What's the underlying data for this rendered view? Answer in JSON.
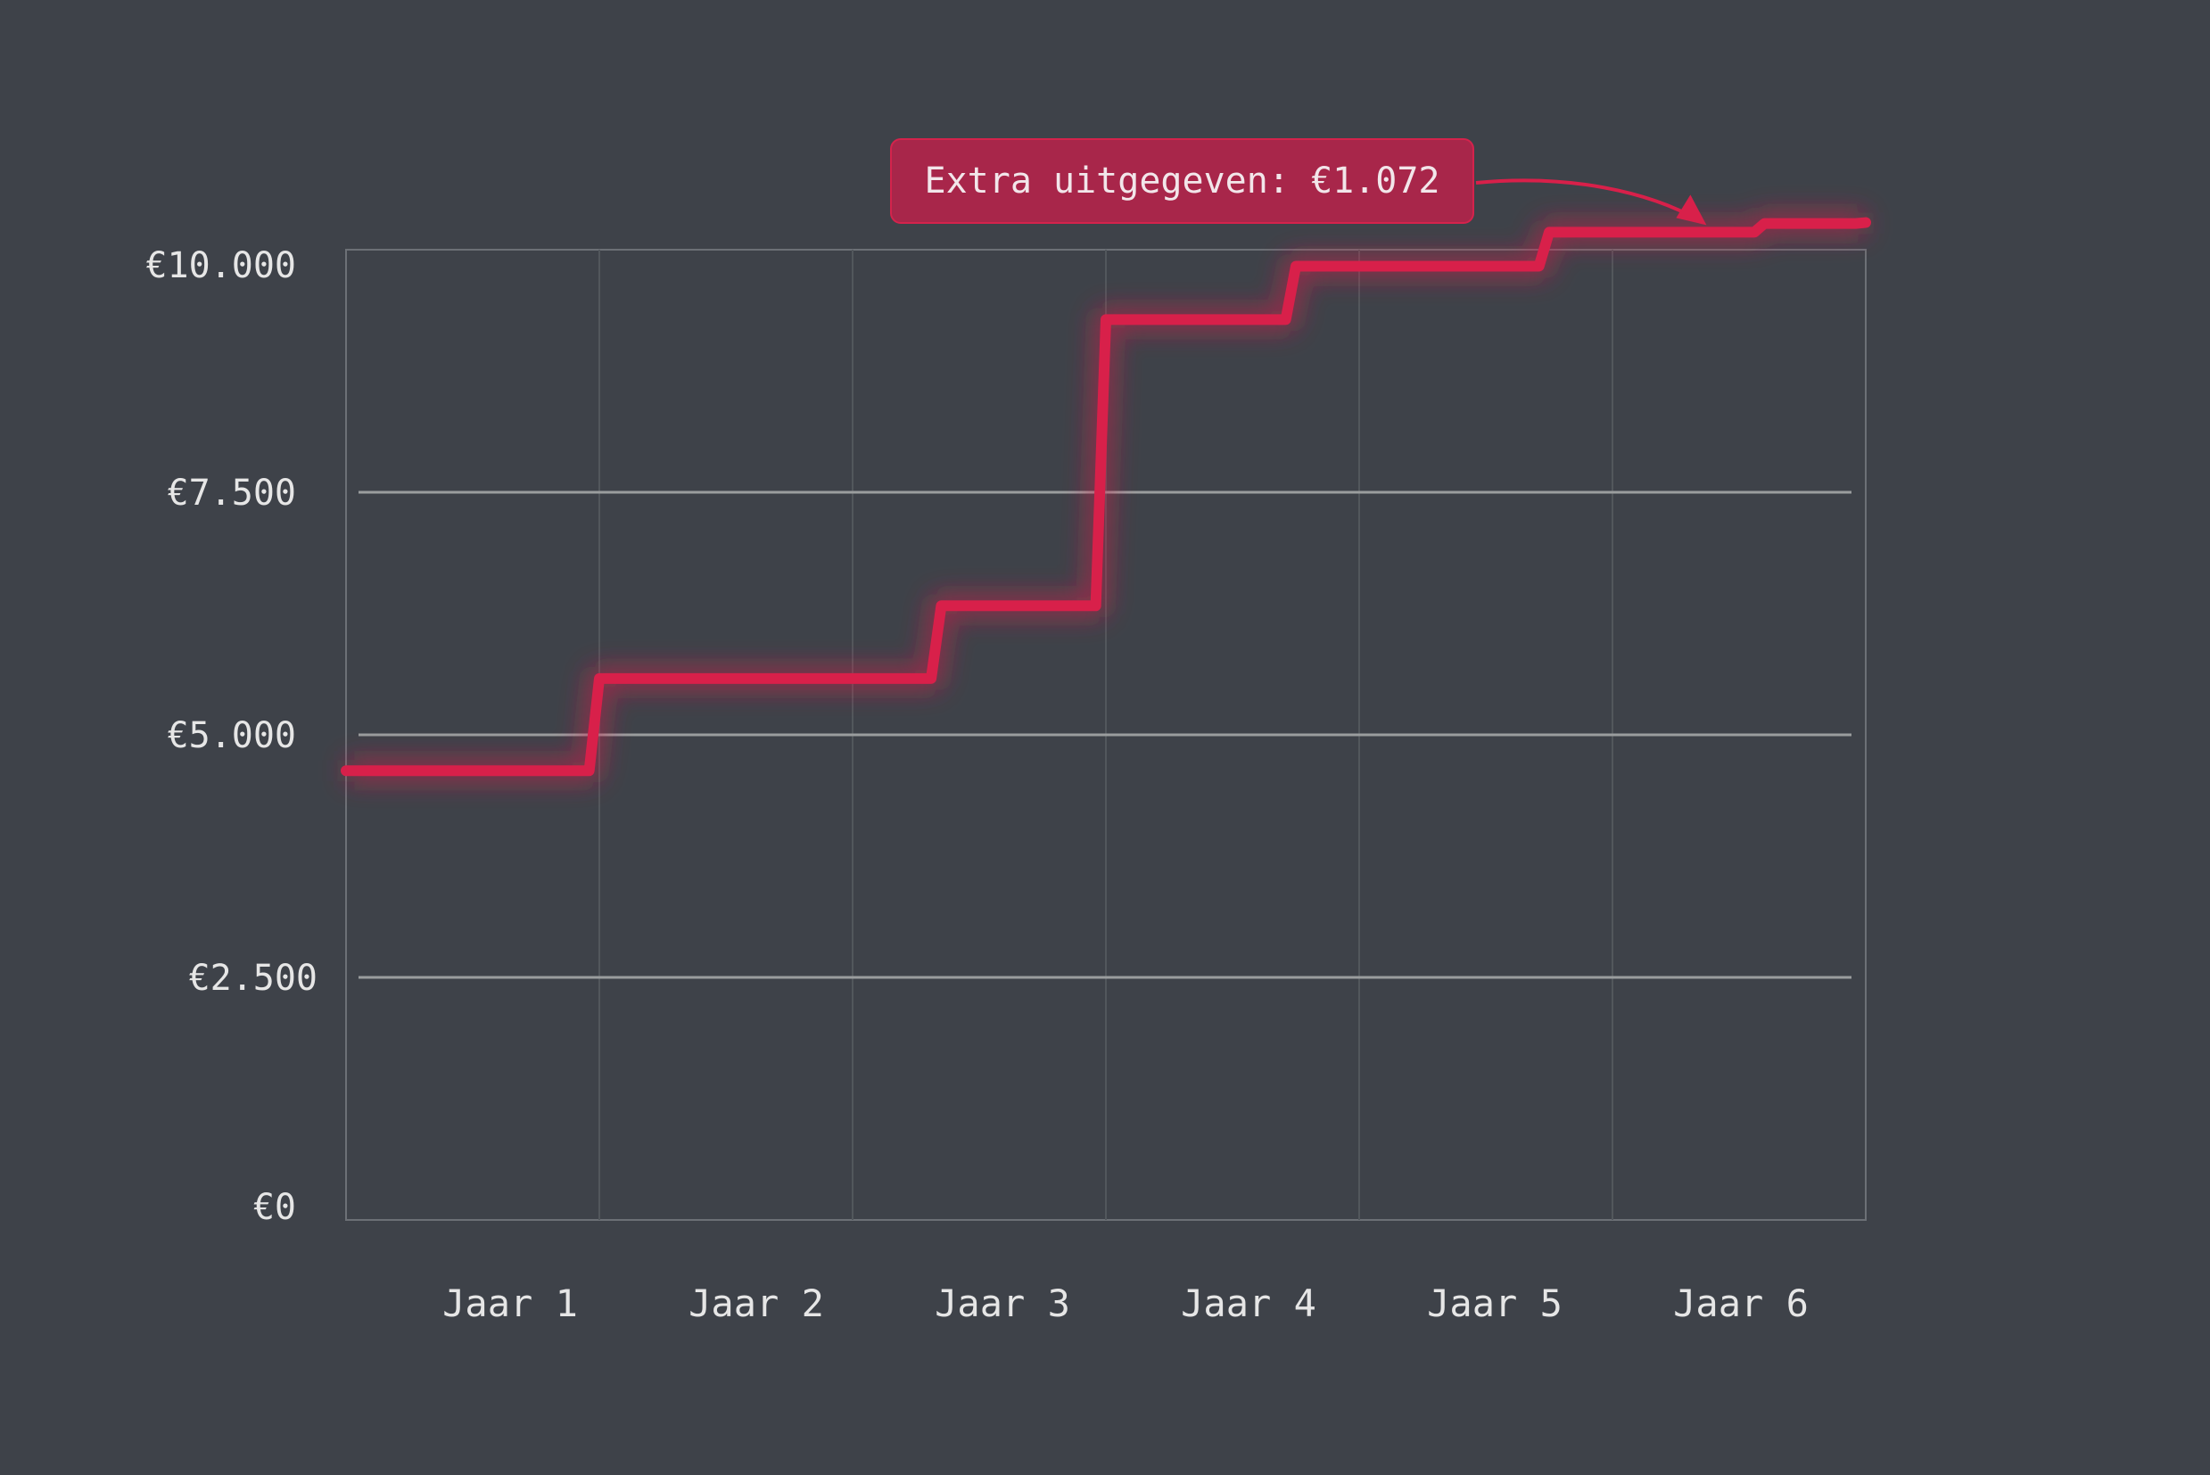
{
  "chart_data": {
    "type": "line",
    "title": "",
    "xlabel": "",
    "ylabel": "",
    "step": true,
    "ylim": [
      0,
      10000
    ],
    "xlim": [
      0,
      6
    ],
    "y_tick_labels": [
      "€0",
      "€2.500",
      "€5.000",
      "€7.500",
      "€10.000"
    ],
    "y_ticks": [
      0,
      2500,
      5000,
      7500,
      10000
    ],
    "x_tick_labels": [
      "Jaar 1",
      "Jaar 2",
      "Jaar 3",
      "Jaar 4",
      "Jaar 5",
      "Jaar 6"
    ],
    "grid": {
      "horizontal": [
        2500,
        5000,
        7500
      ],
      "vertical": true
    },
    "series": [
      {
        "color": "#d8204a",
        "x": [
          0,
          1,
          2.35,
          3.0,
          3.75,
          4.75,
          5.6,
          6.0
        ],
        "y": [
          4630,
          5580,
          6330,
          9280,
          9830,
          10180,
          10270,
          10280
        ]
      }
    ],
    "annotation": {
      "text": "Extra uitgegeven: €1.072",
      "points_to_x": 5.35
    },
    "colors": {
      "background": "#3e4249",
      "line": "#d8204a",
      "callout": "#a8264a",
      "axis_text": "#e6e6e6"
    }
  }
}
